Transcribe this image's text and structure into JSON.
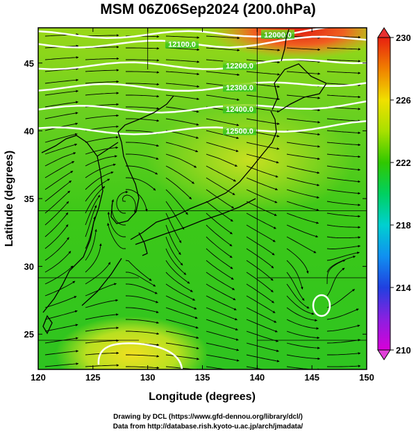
{
  "title": "MSM 06Z06Sep2024 (200.0hPa)",
  "x_axis": {
    "label": "Longitude (degrees)",
    "ticks": [
      120,
      125,
      130,
      135,
      140,
      145,
      150
    ],
    "range": [
      120,
      150
    ]
  },
  "y_axis": {
    "label": "Latitude  (degrees)",
    "ticks": [
      25,
      30,
      35,
      40,
      45
    ],
    "range": [
      22.4,
      47.6
    ]
  },
  "colorbar": {
    "ticks": [
      210,
      214,
      218,
      222,
      226,
      230
    ],
    "range": [
      210,
      230
    ]
  },
  "contours": [
    {
      "label": "12100.0",
      "lat": 46.4
    },
    {
      "label": "12200.0",
      "lat": 44.8
    },
    {
      "label": "12300.0",
      "lat": 43.2
    },
    {
      "label": "12400.0",
      "lat": 41.6
    },
    {
      "label": "12500.0",
      "lat": 40.0
    },
    {
      "label": "12000.0",
      "lat": 47.1
    }
  ],
  "features": {
    "vortex_center": [
      128.0,
      35.0
    ],
    "small_low": [
      145.5,
      27.8
    ]
  },
  "credits": {
    "line1": "Drawing by DCL (https://www.gfd-dennou.org/library/dcl/)",
    "line2": "Data from http://database.rish.kyoto-u.ac.jp/arch/jmadata/"
  }
}
